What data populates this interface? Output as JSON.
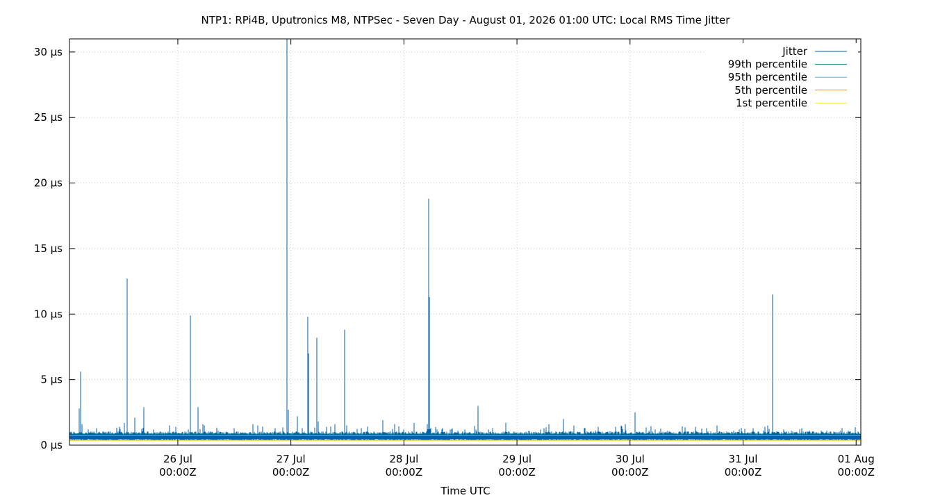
{
  "chart_data": {
    "type": "line",
    "title": "NTP1: RPi4B, Uputronics M8, NTPSec - Seven Day - August 01, 2026 01:00 UTC: Local RMS Time Jitter",
    "xlabel": "Time UTC",
    "ylabel": "",
    "x_unit": "hours relative to 00:00Z 26 Jul",
    "xlim": [
      -23,
      145
    ],
    "ylim": [
      0,
      31
    ],
    "y_unit": "µs",
    "x_ticks": [
      {
        "x": 0,
        "line1": "26 Jul",
        "line2": "00:00Z"
      },
      {
        "x": 24,
        "line1": "27 Jul",
        "line2": "00:00Z"
      },
      {
        "x": 48,
        "line1": "28 Jul",
        "line2": "00:00Z"
      },
      {
        "x": 72,
        "line1": "29 Jul",
        "line2": "00:00Z"
      },
      {
        "x": 96,
        "line1": "30 Jul",
        "line2": "00:00Z"
      },
      {
        "x": 120,
        "line1": "31 Jul",
        "line2": "00:00Z"
      },
      {
        "x": 144,
        "line1": "01 Aug",
        "line2": "00:00Z"
      }
    ],
    "y_ticks": [
      {
        "y": 0,
        "label": "0 µs"
      },
      {
        "y": 5,
        "label": "5 µs"
      },
      {
        "y": 10,
        "label": "10 µs"
      },
      {
        "y": 15,
        "label": "15 µs"
      },
      {
        "y": 20,
        "label": "20 µs"
      },
      {
        "y": 25,
        "label": "25 µs"
      },
      {
        "y": 30,
        "label": "30 µs"
      }
    ],
    "grid": true,
    "legend_position": "top-right",
    "series": [
      {
        "name": "Jitter",
        "color": "#0060ad",
        "baseline_low": 0.35,
        "baseline_high": 0.95,
        "spikes": [
          [
            -21.0,
            2.8
          ],
          [
            -20.7,
            5.6
          ],
          [
            -20.3,
            1.6
          ],
          [
            -19.0,
            1.2
          ],
          [
            -12.4,
            1.4
          ],
          [
            -11.3,
            1.7
          ],
          [
            -10.7,
            12.7
          ],
          [
            -9.2,
            2.1
          ],
          [
            -7.2,
            2.9
          ],
          [
            -5.2,
            1.2
          ],
          [
            2.7,
            9.9
          ],
          [
            4.3,
            2.9
          ],
          [
            5.3,
            1.6
          ],
          [
            16.0,
            1.6
          ],
          [
            17.0,
            1.5
          ],
          [
            20.6,
            1.3
          ],
          [
            -0.5,
            1.4
          ],
          [
            2.2,
            1.2
          ],
          [
            8.5,
            1.1
          ],
          [
            12.0,
            1.3
          ],
          [
            23.1,
            31.0
          ],
          [
            23.4,
            2.7
          ],
          [
            25.4,
            2.2
          ],
          [
            26.4,
            1.3
          ],
          [
            27.6,
            9.8
          ],
          [
            27.8,
            7.0
          ],
          [
            29.5,
            8.2
          ],
          [
            29.8,
            1.8
          ],
          [
            31.6,
            1.4
          ],
          [
            33.3,
            1.6
          ],
          [
            35.4,
            8.8
          ],
          [
            35.8,
            1.5
          ],
          [
            39.0,
            1.3
          ],
          [
            43.5,
            1.9
          ],
          [
            46.1,
            1.6
          ],
          [
            48.0,
            1.2
          ],
          [
            50.1,
            1.7
          ],
          [
            53.0,
            1.6
          ],
          [
            53.2,
            18.8
          ],
          [
            53.4,
            11.3
          ],
          [
            53.7,
            1.3
          ],
          [
            56.0,
            1.2
          ],
          [
            57.9,
            1.2
          ],
          [
            59.4,
            1.1
          ],
          [
            60.9,
            1.2
          ],
          [
            63.8,
            3.0
          ],
          [
            66.0,
            1.2
          ],
          [
            69.6,
            1.7
          ],
          [
            74.5,
            1.1
          ],
          [
            78.8,
            1.6
          ],
          [
            81.8,
            2.0
          ],
          [
            84.1,
            1.5
          ],
          [
            86.3,
            1.3
          ],
          [
            89.2,
            1.4
          ],
          [
            93.0,
            1.4
          ],
          [
            94.1,
            1.5
          ],
          [
            95.0,
            1.6
          ],
          [
            97.0,
            2.5
          ],
          [
            100.0,
            1.1
          ],
          [
            101.4,
            1.2
          ],
          [
            104.0,
            1.1
          ],
          [
            109.9,
            1.4
          ],
          [
            112.2,
            1.3
          ],
          [
            114.4,
            1.5
          ],
          [
            118.0,
            1.1
          ],
          [
            122.1,
            1.3
          ],
          [
            124.7,
            1.4
          ],
          [
            125.2,
            1.5
          ],
          [
            126.2,
            11.5
          ],
          [
            128.6,
            1.2
          ],
          [
            130.3,
            1.1
          ],
          [
            134.1,
            1.1
          ],
          [
            137.8,
            1.1
          ],
          [
            142.0,
            1.0
          ]
        ]
      },
      {
        "name": "99th percentile",
        "color": "#00737d",
        "value": 0.85
      },
      {
        "name": "95th percentile",
        "color": "#56b4e9",
        "value": 0.73
      },
      {
        "name": "5th percentile",
        "color": "#e69f00",
        "value": 0.39
      },
      {
        "name": "1st percentile",
        "color": "#f0e442",
        "value": 0.34
      }
    ]
  }
}
